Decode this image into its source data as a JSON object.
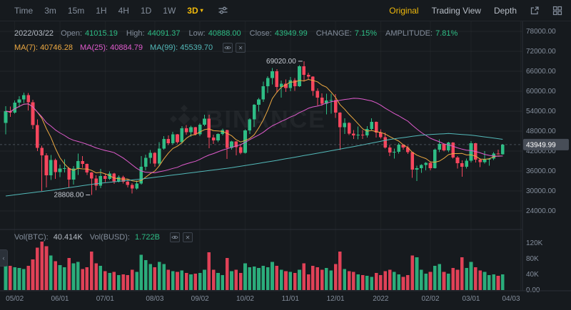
{
  "toolbar": {
    "intervals": [
      "Time",
      "3m",
      "15m",
      "1H",
      "4H",
      "1D",
      "1W",
      "3D"
    ],
    "selected_interval": "3D",
    "right_tabs": [
      "Original",
      "Trading View",
      "Depth"
    ],
    "selected_tab": "Original"
  },
  "info_bar": {
    "date": "2022/03/22",
    "fields": [
      {
        "label": "Open:",
        "value": "41015.19"
      },
      {
        "label": "High:",
        "value": "44091.37"
      },
      {
        "label": "Low:",
        "value": "40888.00"
      },
      {
        "label": "Close:",
        "value": "43949.99"
      },
      {
        "label": "CHANGE:",
        "value": "7.15%"
      },
      {
        "label": "AMPLITUDE:",
        "value": "7.81%"
      }
    ]
  },
  "ma_bar": {
    "items": [
      {
        "label": "MA(7):",
        "value": "40746.28",
        "color": "#eda942"
      },
      {
        "label": "MA(25):",
        "value": "40884.79",
        "color": "#e05bcd"
      },
      {
        "label": "MA(99):",
        "value": "45539.70",
        "color": "#53b9b9"
      }
    ]
  },
  "volume_bar": {
    "items": [
      {
        "label": "Vol(BTC):",
        "value": "40.414K",
        "color": "#b7bdc6"
      },
      {
        "label": "Vol(BUSD):",
        "value": "1.722B",
        "color": "#2ebd85"
      }
    ]
  },
  "watermark": "BINANCE",
  "chart_data": {
    "type": "candlestick",
    "interval": "3D",
    "price_axis": {
      "max": 78000,
      "step": 6000,
      "ticks": [
        "78000.00",
        "72000.00",
        "66000.00",
        "60000.00",
        "54000.00",
        "48000.00",
        "42000.00",
        "36000.00",
        "30000.00",
        "24000.00"
      ]
    },
    "vol_axis": {
      "ticks": [
        "120K",
        "80K",
        "40K",
        "0.00"
      ]
    },
    "x_labels": [
      {
        "i": 2,
        "t": "05/02"
      },
      {
        "i": 12,
        "t": "06/01"
      },
      {
        "i": 22,
        "t": "07/01"
      },
      {
        "i": 33,
        "t": "08/03"
      },
      {
        "i": 43,
        "t": "09/02"
      },
      {
        "i": 53,
        "t": "10/02"
      },
      {
        "i": 63,
        "t": "11/01"
      },
      {
        "i": 73,
        "t": "12/01"
      },
      {
        "i": 83,
        "t": "2022"
      },
      {
        "i": 94,
        "t": "02/02"
      },
      {
        "i": 103,
        "t": "03/01"
      },
      {
        "i": 114,
        "t": "04/03"
      }
    ],
    "candles": [
      [
        50500,
        55500,
        47000,
        54000,
        96
      ],
      [
        54000,
        55400,
        52300,
        53600,
        62
      ],
      [
        53600,
        57200,
        53200,
        56600,
        58
      ],
      [
        56600,
        58500,
        55200,
        57500,
        56
      ],
      [
        57500,
        59600,
        56500,
        58800,
        54
      ],
      [
        58800,
        59500,
        54200,
        56700,
        62
      ],
      [
        56700,
        57400,
        48600,
        49800,
        78
      ],
      [
        49800,
        51500,
        42000,
        43000,
        108
      ],
      [
        43000,
        43600,
        30000,
        40700,
        124
      ],
      [
        40700,
        41400,
        31100,
        34700,
        112
      ],
      [
        34700,
        40800,
        33300,
        39300,
        88
      ],
      [
        39300,
        39800,
        33600,
        35700,
        74
      ],
      [
        35700,
        37900,
        34200,
        36700,
        64
      ],
      [
        36700,
        39500,
        35600,
        36900,
        58
      ],
      [
        36900,
        37200,
        31000,
        33400,
        82
      ],
      [
        33400,
        37500,
        31900,
        36700,
        68
      ],
      [
        36700,
        41300,
        34800,
        39000,
        72
      ],
      [
        39000,
        40500,
        37000,
        38100,
        54
      ],
      [
        38100,
        38300,
        34800,
        35600,
        58
      ],
      [
        35600,
        35700,
        28808,
        33700,
        98
      ],
      [
        33700,
        34700,
        30200,
        31600,
        68
      ],
      [
        31600,
        36600,
        30900,
        34500,
        62
      ],
      [
        34500,
        35100,
        32700,
        33600,
        48
      ],
      [
        33600,
        35900,
        33300,
        35300,
        44
      ],
      [
        35300,
        35500,
        32100,
        32900,
        46
      ],
      [
        32900,
        34700,
        32600,
        34200,
        38
      ],
      [
        34200,
        34600,
        32200,
        32800,
        40
      ],
      [
        32800,
        33600,
        31100,
        31800,
        38
      ],
      [
        31800,
        32400,
        29300,
        30800,
        52
      ],
      [
        30800,
        33100,
        30400,
        32300,
        46
      ],
      [
        32300,
        40500,
        31900,
        37300,
        90
      ],
      [
        37300,
        40900,
        36200,
        40000,
        76
      ],
      [
        40000,
        42300,
        38300,
        41500,
        66
      ],
      [
        41500,
        41700,
        37300,
        38200,
        58
      ],
      [
        38200,
        44700,
        37500,
        42800,
        72
      ],
      [
        42800,
        46450,
        42400,
        45600,
        66
      ],
      [
        45600,
        46700,
        43800,
        44400,
        52
      ],
      [
        44400,
        47800,
        43900,
        47000,
        48
      ],
      [
        47000,
        47150,
        44200,
        44700,
        46
      ],
      [
        44700,
        49500,
        44300,
        48900,
        50
      ],
      [
        48900,
        49800,
        46900,
        47700,
        44
      ],
      [
        47700,
        49650,
        46250,
        49200,
        40
      ],
      [
        49200,
        49300,
        46700,
        47000,
        42
      ],
      [
        47000,
        50400,
        46500,
        49900,
        44
      ],
      [
        49900,
        52900,
        49500,
        51800,
        52
      ],
      [
        51800,
        52950,
        42900,
        46100,
        96
      ],
      [
        46100,
        46900,
        44100,
        45200,
        52
      ],
      [
        45200,
        47400,
        44700,
        47100,
        44
      ],
      [
        47100,
        48800,
        46700,
        48300,
        38
      ],
      [
        48300,
        48400,
        39600,
        43000,
        82
      ],
      [
        43000,
        45100,
        42400,
        44900,
        48
      ],
      [
        44900,
        45000,
        40750,
        43200,
        52
      ],
      [
        43200,
        44100,
        41000,
        41500,
        44
      ],
      [
        41500,
        48500,
        41300,
        48200,
        68
      ],
      [
        48200,
        51900,
        47100,
        51500,
        58
      ],
      [
        51500,
        56100,
        49300,
        55900,
        60
      ],
      [
        55900,
        58000,
        53900,
        57500,
        56
      ],
      [
        57500,
        62900,
        56800,
        61500,
        62
      ],
      [
        61500,
        64500,
        59500,
        64000,
        58
      ],
      [
        64000,
        67000,
        62000,
        66000,
        72
      ],
      [
        66000,
        66600,
        59600,
        61300,
        62
      ],
      [
        61300,
        63200,
        58100,
        62200,
        52
      ],
      [
        62200,
        63500,
        59800,
        61000,
        48
      ],
      [
        61000,
        64300,
        60000,
        63300,
        46
      ],
      [
        63300,
        64000,
        60100,
        61500,
        44
      ],
      [
        61500,
        67800,
        61300,
        67500,
        52
      ],
      [
        67500,
        69020,
        62900,
        64900,
        68
      ],
      [
        64900,
        65600,
        63400,
        64400,
        40
      ],
      [
        64400,
        64500,
        58600,
        60100,
        62
      ],
      [
        60100,
        60900,
        55700,
        58100,
        58
      ],
      [
        58100,
        59400,
        55600,
        56300,
        52
      ],
      [
        56300,
        59300,
        53000,
        57200,
        56
      ],
      [
        57200,
        59200,
        53300,
        57300,
        50
      ],
      [
        57300,
        59100,
        52000,
        53600,
        66
      ],
      [
        53600,
        53700,
        42300,
        49200,
        98
      ],
      [
        49200,
        51900,
        47100,
        50500,
        54
      ],
      [
        50500,
        50700,
        46800,
        47300,
        48
      ],
      [
        47300,
        48300,
        45600,
        46700,
        46
      ],
      [
        46700,
        49400,
        45500,
        46900,
        40
      ],
      [
        46900,
        48300,
        45600,
        46700,
        38
      ],
      [
        46700,
        49500,
        46100,
        48600,
        36
      ],
      [
        48600,
        51900,
        48100,
        50800,
        34
      ],
      [
        50800,
        50900,
        46100,
        47600,
        44
      ],
      [
        47600,
        48500,
        45700,
        46200,
        38
      ],
      [
        46200,
        47600,
        42800,
        43100,
        48
      ],
      [
        43100,
        43800,
        40500,
        41600,
        52
      ],
      [
        41600,
        42800,
        39700,
        41800,
        46
      ],
      [
        41800,
        44400,
        41300,
        43900,
        40
      ],
      [
        43900,
        44000,
        42400,
        43100,
        34
      ],
      [
        43100,
        43600,
        41100,
        41700,
        38
      ],
      [
        41700,
        41800,
        34000,
        36400,
        88
      ],
      [
        36400,
        37600,
        32950,
        36900,
        84
      ],
      [
        36900,
        38000,
        35500,
        37800,
        52
      ],
      [
        37800,
        38700,
        36200,
        38500,
        42
      ],
      [
        38500,
        38900,
        36250,
        36900,
        46
      ],
      [
        36900,
        42700,
        36800,
        42400,
        62
      ],
      [
        42400,
        45500,
        41700,
        44100,
        66
      ],
      [
        44100,
        44300,
        41900,
        42200,
        46
      ],
      [
        42200,
        44750,
        41700,
        44600,
        42
      ],
      [
        44600,
        44700,
        39800,
        40100,
        56
      ],
      [
        40100,
        40500,
        36800,
        38400,
        52
      ],
      [
        38400,
        39200,
        34300,
        37300,
        84
      ],
      [
        37300,
        39700,
        36800,
        39100,
        56
      ],
      [
        39100,
        44950,
        38600,
        44400,
        72
      ],
      [
        44400,
        44500,
        38550,
        39400,
        58
      ],
      [
        39400,
        39900,
        37150,
        38700,
        50
      ],
      [
        38700,
        42000,
        38200,
        39400,
        46
      ],
      [
        39400,
        39900,
        37600,
        39700,
        38
      ],
      [
        39700,
        41700,
        39300,
        41300,
        40
      ],
      [
        41300,
        42400,
        40900,
        41000,
        36
      ],
      [
        41015.19,
        44091.37,
        40888.0,
        43949.99,
        40.414
      ]
    ],
    "ma_periods": [
      7,
      25,
      99
    ],
    "ma_colors": {
      "ma7": "#eda942",
      "ma25": "#e05bcd",
      "ma99": "#53b9b9"
    },
    "ma99_anchors": [
      [
        0,
        28500
      ],
      [
        10,
        30200
      ],
      [
        20,
        32200
      ],
      [
        30,
        33600
      ],
      [
        40,
        35300
      ],
      [
        50,
        37000
      ],
      [
        60,
        39200
      ],
      [
        70,
        41600
      ],
      [
        78,
        43600
      ],
      [
        85,
        45500
      ],
      [
        92,
        46800
      ],
      [
        98,
        47300
      ],
      [
        103,
        46800
      ],
      [
        107,
        46100
      ],
      [
        110,
        45539.7
      ]
    ],
    "annotations": [
      {
        "text": "69020.00",
        "candle": 66,
        "at": "high"
      },
      {
        "text": "28808.00",
        "candle": 19,
        "at": "low"
      }
    ],
    "last_price_label": "43949.99",
    "colors": {
      "up": "#2ebd85",
      "down": "#f6465d",
      "grid": "rgba(255,255,255,0.05)",
      "grid_v": "rgba(255,255,255,0.035)",
      "axis_text": "#848e9c",
      "divider": "#2a2f36",
      "last_price_bg": "#474d57",
      "last_price_line": "#848e9c",
      "ann_text": "#c7ccd4"
    }
  }
}
